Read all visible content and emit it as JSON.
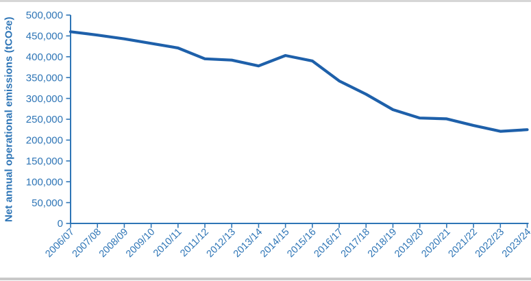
{
  "page": {
    "background_color": "#ffffff",
    "top_border_color": "#d6d6d6",
    "bottom_border_color": "#c9c9c9"
  },
  "chart_data": {
    "type": "line",
    "title": "",
    "ylabel": "Net annual operational emissions (tCO2e)",
    "ylabel_parts": {
      "prefix": "Net annual operational emissions (tCO",
      "sub": "2",
      "suffix": "e)"
    },
    "xlabel": "",
    "categories": [
      "2006/07",
      "2007/08",
      "2008/09",
      "2009/10",
      "2010/11",
      "2011/12",
      "2012/13",
      "2013/14",
      "2014/15",
      "2015/16",
      "2016/17",
      "2017/18",
      "2018/19",
      "2019/20",
      "2020/21",
      "2021/22",
      "2022/23",
      "2023/24"
    ],
    "series": [
      {
        "name": "Net annual operational emissions",
        "values": [
          460000,
          452000,
          443000,
          432000,
          421000,
          395000,
          392000,
          378000,
          403000,
          390000,
          342000,
          310000,
          273000,
          253000,
          251000,
          235000,
          221000,
          225000
        ]
      }
    ],
    "ylim": [
      0,
      500000
    ],
    "ytick_step": 50000,
    "ytick_labels": [
      "0",
      "50,000",
      "100,000",
      "150,000",
      "200,000",
      "250,000",
      "300,000",
      "350,000",
      "400,000",
      "450,000",
      "500,000"
    ],
    "grid": false,
    "legend": "none",
    "line_color": "#1e60aa",
    "axis_color": "#2e75b6",
    "label_color": "#2e75b6"
  }
}
